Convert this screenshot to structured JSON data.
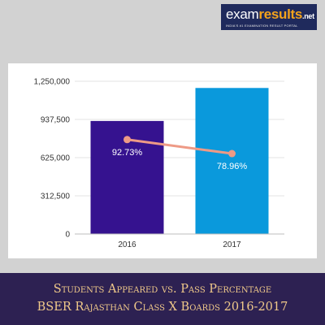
{
  "logo": {
    "part1": "exam",
    "part2": "results",
    "part3": ".net",
    "tagline": "INDIA'S #1 EXAMINATION RESULT PORTAL"
  },
  "banner": {
    "line1": "Students Appeared vs. Pass Percentage",
    "line2": "BSER Rajasthan  Class X Boards 2016-2017"
  },
  "colors": {
    "bar_2016": "#35128f",
    "bar_2017": "#0a99dc",
    "line": "#ee9a86",
    "banner_bg": "#2d2152",
    "banner_text": "#f0c98a"
  },
  "chart_data": {
    "type": "bar",
    "categories": [
      "2016",
      "2017"
    ],
    "series": [
      {
        "type": "bar",
        "axis": "left",
        "values": [
          925000,
          1195000
        ]
      },
      {
        "type": "line",
        "axis": "right",
        "values": [
          92.73,
          78.96
        ],
        "labels": [
          "92.73%",
          "78.96%"
        ]
      }
    ],
    "ylim": [
      0,
      1250000
    ],
    "yticks": [
      "0",
      "312,500",
      "625,000",
      "937,500",
      "1,250,000"
    ],
    "ytick_values": [
      0,
      312500,
      625000,
      937500,
      1250000
    ],
    "y2lim": [
      0,
      150
    ],
    "grid": true,
    "title": "",
    "xlabel": "",
    "ylabel": ""
  }
}
